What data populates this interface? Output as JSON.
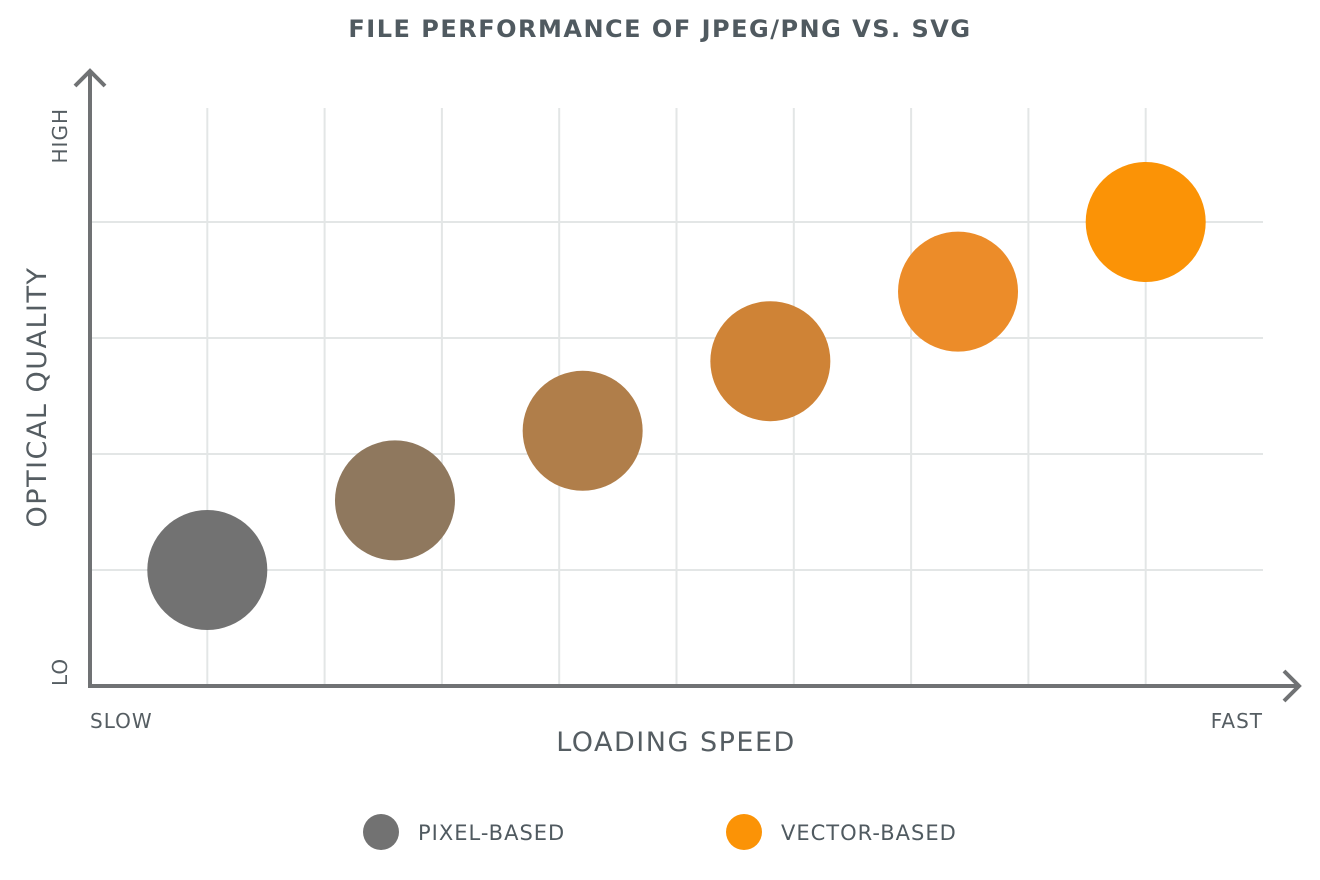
{
  "chart_data": {
    "type": "scatter",
    "title": "FILE PERFORMANCE OF JPEG/PNG VS. SVG",
    "xlabel": "LOADING SPEED",
    "ylabel": "OPTICAL QUALITY",
    "x_ticks": {
      "low": "SLOW",
      "high": "FAST"
    },
    "y_ticks": {
      "low": "LO",
      "high": "HIGH"
    },
    "xlim": [
      0,
      10
    ],
    "ylim": [
      0,
      5
    ],
    "grid": true,
    "legend_placement": "bottom",
    "legend": [
      {
        "label": "PIXEL-BASED",
        "color": "#727272"
      },
      {
        "label": "VECTOR-BASED",
        "color": "#fb9306"
      }
    ],
    "points": [
      {
        "x": 1.0,
        "y": 1.0,
        "color": "#727272"
      },
      {
        "x": 2.6,
        "y": 1.6,
        "color": "#8f785e"
      },
      {
        "x": 4.2,
        "y": 2.2,
        "color": "#b07e4a"
      },
      {
        "x": 5.8,
        "y": 2.8,
        "color": "#cf8336"
      },
      {
        "x": 7.4,
        "y": 3.4,
        "color": "#ec8c29"
      },
      {
        "x": 9.0,
        "y": 4.0,
        "color": "#fb9306"
      }
    ]
  }
}
